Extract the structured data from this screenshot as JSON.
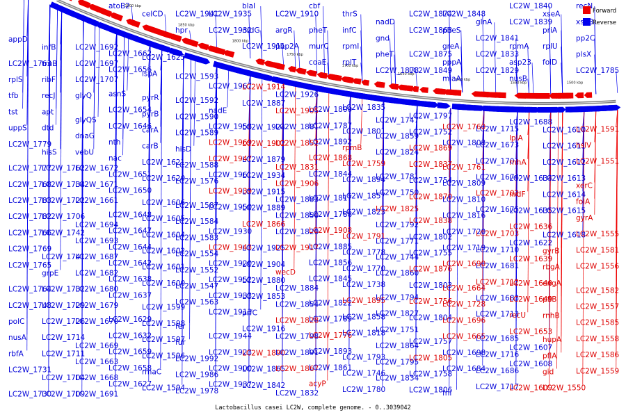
{
  "caption": "Lactobacillus casei LC2W, complete genome. - 0..3039042",
  "legend": [
    {
      "name": "Forward",
      "color": "#ee0000"
    },
    {
      "name": "Reverse",
      "color": "#0000ee"
    }
  ],
  "colors": {
    "forward": "#ee0000",
    "reverse": "#0000ee",
    "axis": "#808080"
  },
  "ticks": [
    "1950 kbp",
    "1900 kbp",
    "1850 kbp",
    "1800 kbp",
    "1750 kbp",
    "1700 kbp",
    "1650 kbp",
    "1600 kbp",
    "1550 kbp",
    "1500 kbp"
  ],
  "labels": [
    {
      "t": "atoB2",
      "s": "r"
    },
    {
      "t": "celCD",
      "s": "r"
    },
    {
      "t": "LC2W_1941",
      "s": "r"
    },
    {
      "t": "hpr",
      "s": "r"
    },
    {
      "t": "LC2W_1935",
      "s": "r"
    },
    {
      "t": "LC2W_1932",
      "s": "r"
    },
    {
      "t": "blaI",
      "s": "r"
    },
    {
      "t": "nrdG",
      "s": "r"
    },
    {
      "t": "LC2W_1911",
      "s": "r"
    },
    {
      "t": "LC2W_1910",
      "s": "r"
    },
    {
      "t": "argR",
      "s": "r"
    },
    {
      "t": "pbp2A",
      "s": "r"
    },
    {
      "t": "cbf",
      "s": "r"
    },
    {
      "t": "pheT",
      "s": "r"
    },
    {
      "t": "murC",
      "s": "r"
    },
    {
      "t": "coaE",
      "s": "r"
    },
    {
      "t": "thrS",
      "s": "r"
    },
    {
      "t": "infC",
      "s": "r"
    },
    {
      "t": "rpmI",
      "s": "r"
    },
    {
      "t": "rplT",
      "s": "r"
    },
    {
      "t": "nadD",
      "s": "r"
    },
    {
      "t": "gnd",
      "s": "r"
    },
    {
      "t": "pheT",
      "s": "r"
    },
    {
      "t": "LC2W_1878",
      "s": "r"
    },
    {
      "t": "LC2W_1874",
      "s": "r"
    },
    {
      "t": "LC2W_1863",
      "s": "r"
    },
    {
      "t": "LC2W_1875",
      "s": "r"
    },
    {
      "t": "LC2W_1849",
      "s": "r"
    },
    {
      "t": "LC2W_1848",
      "s": "r"
    },
    {
      "t": "pheS",
      "s": "r"
    },
    {
      "t": "greA",
      "s": "r"
    },
    {
      "t": "pppA",
      "s": "r"
    },
    {
      "t": "miaA",
      "s": "r"
    },
    {
      "t": "glnA",
      "s": "r"
    },
    {
      "t": "LC2W_1841",
      "s": "r"
    },
    {
      "t": "LC2W_1833",
      "s": "r"
    },
    {
      "t": "LC2W_1829",
      "s": "r"
    },
    {
      "t": "LC2W_1840",
      "s": "r"
    },
    {
      "t": "LC2W_1839",
      "s": "r"
    },
    {
      "t": "rpmA",
      "s": "r"
    },
    {
      "t": "asp23",
      "s": "r"
    },
    {
      "t": "nusB",
      "s": "r"
    },
    {
      "t": "xseA",
      "s": "r"
    },
    {
      "t": "priA",
      "s": "r"
    },
    {
      "t": "rplU",
      "s": "r"
    },
    {
      "t": "folD",
      "s": "r"
    },
    {
      "t": "recN",
      "s": "r"
    },
    {
      "t": "xseB",
      "s": "r"
    },
    {
      "t": "pp2C",
      "s": "r"
    },
    {
      "t": "plsX",
      "s": "r"
    },
    {
      "t": "LC2W_1785",
      "s": "r"
    },
    {
      "t": "appD",
      "s": "r"
    },
    {
      "t": "LC2W_1763",
      "s": "r"
    },
    {
      "t": "rplS",
      "s": "r"
    },
    {
      "t": "tfb",
      "s": "r"
    },
    {
      "t": "tst",
      "s": "r"
    },
    {
      "t": "uppS",
      "s": "r"
    },
    {
      "t": "LC2W_1779",
      "s": "r"
    },
    {
      "t": "LC2W_1777",
      "s": "r"
    },
    {
      "t": "LC2W_1768",
      "s": "r"
    },
    {
      "t": "LC2W_1783",
      "s": "r"
    },
    {
      "t": "LC2W_1782",
      "s": "r"
    },
    {
      "t": "LC2W_1766",
      "s": "r"
    },
    {
      "t": "LC2W_1769",
      "s": "r"
    },
    {
      "t": "LC2W_1765",
      "s": "r"
    },
    {
      "t": "LC2W_1764",
      "s": "r"
    },
    {
      "t": "LC2W_1748",
      "s": "r"
    },
    {
      "t": "polC",
      "s": "r"
    },
    {
      "t": "nusA",
      "s": "r"
    },
    {
      "t": "rbfA",
      "s": "r"
    },
    {
      "t": "LC2W_1731",
      "s": "r"
    },
    {
      "t": "LC2W_1730",
      "s": "r"
    },
    {
      "t": "infB",
      "s": "r"
    },
    {
      "t": "truB",
      "s": "r"
    },
    {
      "t": "ribF",
      "s": "r"
    },
    {
      "t": "recJ",
      "s": "r"
    },
    {
      "t": "apt",
      "s": "r"
    },
    {
      "t": "dtd",
      "s": "r"
    },
    {
      "t": "hisS",
      "s": "r"
    },
    {
      "t": "LC2W_1762",
      "s": "r"
    },
    {
      "t": "LC2W_1734",
      "s": "r"
    },
    {
      "t": "LC2W_1722",
      "s": "r"
    },
    {
      "t": "LC2W_1706",
      "s": "r"
    },
    {
      "t": "LC2W_1742",
      "s": "r"
    },
    {
      "t": "LC2W_1741",
      "s": "r"
    },
    {
      "t": "grpE",
      "s": "r"
    },
    {
      "t": "LC2W_1732",
      "s": "r"
    },
    {
      "t": "LC2W_1729",
      "s": "r"
    },
    {
      "t": "LC2W_1726",
      "s": "r"
    },
    {
      "t": "LC2W_1714",
      "s": "r"
    },
    {
      "t": "LC2W_1711",
      "s": "r"
    },
    {
      "t": "LC2W_1704",
      "s": "r"
    },
    {
      "t": "LC2W_1709",
      "s": "r"
    },
    {
      "t": "LC2W_1692",
      "s": "r"
    },
    {
      "t": "LC2W_1697",
      "s": "r"
    },
    {
      "t": "LC2W_1707",
      "s": "r"
    },
    {
      "t": "glyQ",
      "s": "r"
    },
    {
      "t": "glyQS",
      "s": "r"
    },
    {
      "t": "dnaG",
      "s": "r"
    },
    {
      "t": "vebU",
      "s": "r"
    },
    {
      "t": "LC2W_1672",
      "s": "r"
    },
    {
      "t": "LC2W_1671",
      "s": "r"
    },
    {
      "t": "LC2W_1661",
      "s": "r"
    },
    {
      "t": "LC2W_1694",
      "s": "r"
    },
    {
      "t": "LC2W_1693",
      "s": "r"
    },
    {
      "t": "LC2W_1687",
      "s": "r"
    },
    {
      "t": "LC2W_1682",
      "s": "r"
    },
    {
      "t": "LC2W_1680",
      "s": "r"
    },
    {
      "t": "LC2W_1679",
      "s": "r"
    },
    {
      "t": "LC2W_1670",
      "s": "r"
    },
    {
      "t": "LC2W_1669",
      "s": "r"
    },
    {
      "t": "LC2W_1663",
      "s": "r"
    },
    {
      "t": "LC2W_1668",
      "s": "r"
    },
    {
      "t": "LC2W_1691",
      "s": "r"
    },
    {
      "t": "LC2W_1662",
      "s": "r"
    },
    {
      "t": "LC2W_1656",
      "s": "r"
    },
    {
      "t": "asnS",
      "s": "r"
    },
    {
      "t": "LC2W_1654",
      "s": "r"
    },
    {
      "t": "LC2W_1646",
      "s": "r"
    },
    {
      "t": "nth",
      "s": "r"
    },
    {
      "t": "nac",
      "s": "r"
    },
    {
      "t": "LC2W_1651",
      "s": "r"
    },
    {
      "t": "LC2W_1650",
      "s": "r"
    },
    {
      "t": "LC2W_1648",
      "s": "r"
    },
    {
      "t": "LC2W_1647",
      "s": "r"
    },
    {
      "t": "LC2W_1644",
      "s": "r"
    },
    {
      "t": "LC2W_1642",
      "s": "r"
    },
    {
      "t": "LC2W_1638",
      "s": "r"
    },
    {
      "t": "LC2W_1637",
      "s": "r"
    },
    {
      "t": "LC2W_1629",
      "s": "r"
    },
    {
      "t": "LC2W_1632",
      "s": "r"
    },
    {
      "t": "LC2W_1659",
      "s": "r"
    },
    {
      "t": "LC2W_1658",
      "s": "r"
    },
    {
      "t": "LC2W_1627",
      "s": "r"
    },
    {
      "t": "LC2W_1625",
      "s": "r"
    },
    {
      "t": "lspA",
      "s": "r"
    },
    {
      "t": "pyrR",
      "s": "r"
    },
    {
      "t": "pyrB",
      "s": "r"
    },
    {
      "t": "carA",
      "s": "r"
    },
    {
      "t": "carB",
      "s": "r"
    },
    {
      "t": "LC2W_1621",
      "s": "r"
    },
    {
      "t": "LC2W_1620",
      "s": "r"
    },
    {
      "t": "LC2W_1606",
      "s": "r"
    },
    {
      "t": "LC2W_1605",
      "s": "r"
    },
    {
      "t": "LC2W_1604",
      "s": "r"
    },
    {
      "t": "LC2W_1602",
      "s": "r"
    },
    {
      "t": "LC2W_1601",
      "s": "r"
    },
    {
      "t": "LC2W_1600",
      "s": "r"
    },
    {
      "t": "LC2W_1599",
      "s": "r"
    },
    {
      "t": "LC2W_1598",
      "s": "r"
    },
    {
      "t": "LC2W_1597",
      "s": "r"
    },
    {
      "t": "LC2W_1596",
      "s": "r"
    },
    {
      "t": "rmaC",
      "s": "r"
    },
    {
      "t": "LC2W_1594",
      "s": "r"
    },
    {
      "t": "LC2W_1593",
      "s": "r"
    },
    {
      "t": "LC2W_1592",
      "s": "r"
    },
    {
      "t": "LC2W_1590",
      "s": "r"
    },
    {
      "t": "LC2W_1589",
      "s": "r"
    },
    {
      "t": "hisD",
      "s": "r"
    },
    {
      "t": "LC2W_1588",
      "s": "r"
    },
    {
      "t": "LC2W_1576",
      "s": "r"
    },
    {
      "t": "LC2W_1587",
      "s": "r"
    },
    {
      "t": "LC2W_1584",
      "s": "r"
    },
    {
      "t": "LC2W_1583",
      "s": "r"
    },
    {
      "t": "LC2W_1554",
      "s": "r"
    },
    {
      "t": "LC2W_1552",
      "s": "r"
    },
    {
      "t": "LC2W_1547",
      "s": "r"
    },
    {
      "t": "LC2W_1563",
      "s": "r"
    },
    {
      "t": "fer",
      "s": "r"
    },
    {
      "t": "fur",
      "s": "r"
    },
    {
      "t": "LC2W_1992",
      "s": "r"
    },
    {
      "t": "LC2W_1986",
      "s": "r"
    },
    {
      "t": "LC2W_1978",
      "s": "r"
    },
    {
      "t": "LC2W_1967",
      "s": "r"
    },
    {
      "t": "nadE",
      "s": "r"
    },
    {
      "t": "LC2W_1958",
      "s": "r"
    },
    {
      "t": "LC2W_1969",
      "s": "f"
    },
    {
      "t": "LC2W_1947",
      "s": "f"
    },
    {
      "t": "LC2W_1961",
      "s": "r"
    },
    {
      "t": "LC2W_1939",
      "s": "f"
    },
    {
      "t": "LC2W_1950",
      "s": "r"
    },
    {
      "t": "LC2W_1930",
      "s": "r"
    },
    {
      "t": "LC2W_1943",
      "s": "f"
    },
    {
      "t": "LC2W_1920",
      "s": "r"
    },
    {
      "t": "LC2W_1952",
      "s": "r"
    },
    {
      "t": "LC2W_1933",
      "s": "r"
    },
    {
      "t": "LC2W_1913",
      "s": "r"
    },
    {
      "t": "LC2W_1944",
      "s": "r"
    },
    {
      "t": "LC2W_1923",
      "s": "r"
    },
    {
      "t": "LC2W_1900",
      "s": "r"
    },
    {
      "t": "LC2W_1937",
      "s": "r"
    },
    {
      "t": "LC2W_1914",
      "s": "f"
    },
    {
      "t": "LC2W_1887",
      "s": "r"
    },
    {
      "t": "LC2W_1924",
      "s": "r"
    },
    {
      "t": "LC2W_1902",
      "s": "f"
    },
    {
      "t": "LC2W_1879",
      "s": "r"
    },
    {
      "t": "LC2W_1934",
      "s": "r"
    },
    {
      "t": "LC2W_1915",
      "s": "r"
    },
    {
      "t": "LC2W_1889",
      "s": "r"
    },
    {
      "t": "LC2W_1866",
      "s": "f"
    },
    {
      "t": "LC2W_1925",
      "s": "r"
    },
    {
      "t": "LC2W_1904",
      "s": "r"
    },
    {
      "t": "LC2W_1880",
      "s": "r"
    },
    {
      "t": "LC2W_1853",
      "s": "r"
    },
    {
      "t": "prfC",
      "s": "r"
    },
    {
      "t": "LC2W_1916",
      "s": "r"
    },
    {
      "t": "LC2W_1890",
      "s": "f"
    },
    {
      "t": "LC2W_1865",
      "s": "r"
    },
    {
      "t": "LC2W_1842",
      "s": "r"
    },
    {
      "t": "LC2W_1926",
      "s": "r"
    },
    {
      "t": "LC2W_1905",
      "s": "f"
    },
    {
      "t": "LC2W_1881",
      "s": "r"
    },
    {
      "t": "LC2W_1852",
      "s": "f"
    },
    {
      "t": "LC2W_1831",
      "s": "f"
    },
    {
      "t": "LC2W_1906",
      "s": "f"
    },
    {
      "t": "LC2W_1883",
      "s": "r"
    },
    {
      "t": "LC2W_1850",
      "s": "r"
    },
    {
      "t": "LC2W_1820",
      "s": "r"
    },
    {
      "t": "LC2W_1917",
      "s": "f"
    },
    {
      "t": "wecD",
      "s": "f"
    },
    {
      "t": "LC2W_1884",
      "s": "r"
    },
    {
      "t": "LC2W_1854",
      "s": "r"
    },
    {
      "t": "LC2W_1828",
      "s": "f"
    },
    {
      "t": "LC2W_1798",
      "s": "r"
    },
    {
      "t": "LC2W_1891",
      "s": "r"
    },
    {
      "t": "LC2W_1867",
      "s": "f"
    },
    {
      "t": "LC2W_1832",
      "s": "r"
    },
    {
      "t": "LC2W_1800",
      "s": "r"
    },
    {
      "t": "LC2W_1787",
      "s": "r"
    },
    {
      "t": "LC2W_1892",
      "s": "r"
    },
    {
      "t": "LC2W_1868",
      "s": "f"
    },
    {
      "t": "LC2W_1844",
      "s": "r"
    },
    {
      "t": "LC2W_1817",
      "s": "r"
    },
    {
      "t": "LC2W_1788",
      "s": "r"
    },
    {
      "t": "LC2W_1908",
      "s": "f"
    },
    {
      "t": "LC2W_1885",
      "s": "r"
    },
    {
      "t": "LC2W_1856",
      "s": "r"
    },
    {
      "t": "LC2W_1845",
      "s": "r"
    },
    {
      "t": "LC2W_1822",
      "s": "r"
    },
    {
      "t": "LC2W_1789",
      "s": "r"
    },
    {
      "t": "LC2W_1776",
      "s": "f"
    },
    {
      "t": "LC2W_1893",
      "s": "r"
    },
    {
      "t": "LC2W_1861",
      "s": "r"
    },
    {
      "t": "acyP",
      "s": "f"
    },
    {
      "t": "LC2W_1835",
      "s": "r"
    },
    {
      "t": "LC2W_1801",
      "s": "r"
    },
    {
      "t": "rpmB",
      "s": "f"
    },
    {
      "t": "LC2W_1759",
      "s": "f"
    },
    {
      "t": "LC2W_1894",
      "s": "r"
    },
    {
      "t": "LC2W_1857",
      "s": "r"
    },
    {
      "t": "LC2W_1823",
      "s": "r"
    },
    {
      "t": "LC2W_1791",
      "s": "f"
    },
    {
      "t": "LC2W_1778",
      "s": "r"
    },
    {
      "t": "LC2W_1770",
      "s": "r"
    },
    {
      "t": "LC2W_1738",
      "s": "r"
    },
    {
      "t": "LC2W_1895",
      "s": "f"
    },
    {
      "t": "LC2W_1858",
      "s": "r"
    },
    {
      "t": "LC2W_1818",
      "s": "r"
    },
    {
      "t": "LC2W_1793",
      "s": "r"
    },
    {
      "t": "LC2W_1746",
      "s": "r"
    },
    {
      "t": "LC2W_1780",
      "s": "r"
    },
    {
      "t": "LC2W_1747",
      "s": "r"
    },
    {
      "t": "LC2W_1859",
      "s": "r"
    },
    {
      "t": "LC2W_1824",
      "s": "r"
    },
    {
      "t": "LC2W_1781",
      "s": "r"
    },
    {
      "t": "LC2W_1750",
      "s": "r"
    },
    {
      "t": "LC2W_1825",
      "s": "f"
    },
    {
      "t": "LC2W_1792",
      "s": "r"
    },
    {
      "t": "LC2W_1771",
      "s": "r"
    },
    {
      "t": "LC2W_1744",
      "s": "r"
    },
    {
      "t": "LC2W_1860",
      "s": "r"
    },
    {
      "t": "LC2W_1794",
      "s": "r"
    },
    {
      "t": "LC2W_1827",
      "s": "r"
    },
    {
      "t": "LC2W_1751",
      "s": "r"
    },
    {
      "t": "LC2W_1864",
      "s": "r"
    },
    {
      "t": "LC2W_1795",
      "s": "r"
    },
    {
      "t": "LC2W_1834",
      "s": "r"
    },
    {
      "t": "LC2W_1797",
      "s": "r"
    },
    {
      "t": "LC2W_1752",
      "s": "r"
    },
    {
      "t": "LC2W_1869",
      "s": "f"
    },
    {
      "t": "LC2W_1837",
      "s": "f"
    },
    {
      "t": "LC2W_1754",
      "s": "r"
    },
    {
      "t": "LC2W_1870",
      "s": "f"
    },
    {
      "t": "LC2W_1838",
      "s": "f"
    },
    {
      "t": "LC2W_1802",
      "s": "r"
    },
    {
      "t": "LC2W_1755",
      "s": "r"
    },
    {
      "t": "LC2W_1876",
      "s": "f"
    },
    {
      "t": "LC2W_1803",
      "s": "r"
    },
    {
      "t": "LC2W_1756",
      "s": "f"
    },
    {
      "t": "LC2W_1804",
      "s": "r"
    },
    {
      "t": "LC2W_1757",
      "s": "r"
    },
    {
      "t": "LC2W_1805",
      "s": "f"
    },
    {
      "t": "LC2W_1758",
      "s": "r"
    },
    {
      "t": "LC2W_1806",
      "s": "r"
    },
    {
      "t": "LC2W_1760",
      "s": "f"
    },
    {
      "t": "LC2W_1808",
      "s": "r"
    },
    {
      "t": "LC2W_1761",
      "s": "f"
    },
    {
      "t": "LC2W_1809",
      "s": "r"
    },
    {
      "t": "LC2W_1810",
      "s": "r"
    },
    {
      "t": "LC2W_1816",
      "s": "r"
    },
    {
      "t": "LC2W_1720",
      "s": "r"
    },
    {
      "t": "LC2W_1719",
      "s": "r"
    },
    {
      "t": "LC2W_1690",
      "s": "f"
    },
    {
      "t": "LC2W_1664",
      "s": "f"
    },
    {
      "t": "LC2W_1728",
      "s": "f"
    },
    {
      "t": "LC2W_1696",
      "s": "f"
    },
    {
      "t": "LC2W_1665",
      "s": "f"
    },
    {
      "t": "LC2W_1698",
      "s": "r"
    },
    {
      "t": "LC2W_1684",
      "s": "r"
    },
    {
      "t": "fni",
      "s": "r"
    },
    {
      "t": "LC2W_1715",
      "s": "r"
    },
    {
      "t": "LC2W_1673",
      "s": "r"
    },
    {
      "t": "LC2W_1701",
      "s": "r"
    },
    {
      "t": "LC2W_1674",
      "s": "r"
    },
    {
      "t": "LC2W_1702",
      "s": "f"
    },
    {
      "t": "LC2W_1675",
      "s": "r"
    },
    {
      "t": "LC2W_1703",
      "s": "f"
    },
    {
      "t": "LC2W_1710",
      "s": "r"
    },
    {
      "t": "LC2W_1681",
      "s": "r"
    },
    {
      "t": "LC2W_1712",
      "s": "f"
    },
    {
      "t": "LC2W_1683",
      "s": "r"
    },
    {
      "t": "LC2W_1713",
      "s": "r"
    },
    {
      "t": "LC2W_1685",
      "s": "r"
    },
    {
      "t": "LC2W_1716",
      "s": "r"
    },
    {
      "t": "LC2W_1686",
      "s": "r"
    },
    {
      "t": "LC2W_1717",
      "s": "r"
    },
    {
      "t": "LC2W_1688",
      "s": "r"
    },
    {
      "t": "lplA",
      "s": "f"
    },
    {
      "t": "rnhA",
      "s": "f"
    },
    {
      "t": "LC2W_1634",
      "s": "r"
    },
    {
      "t": "nrdF",
      "s": "f"
    },
    {
      "t": "LC2W_1635",
      "s": "r"
    },
    {
      "t": "LC2W_1636",
      "s": "f"
    },
    {
      "t": "LC2W_1622",
      "s": "r"
    },
    {
      "t": "LC2W_1639",
      "s": "f"
    },
    {
      "t": "LC2W_1640",
      "s": "f"
    },
    {
      "t": "LC2W_1649",
      "s": "f"
    },
    {
      "t": "recU",
      "s": "f"
    },
    {
      "t": "LC2W_1653",
      "s": "f"
    },
    {
      "t": "LC2W_1607",
      "s": "r"
    },
    {
      "t": "LC2W_1608",
      "s": "r"
    },
    {
      "t": "LC2W_1609",
      "s": "f"
    },
    {
      "t": "LC2W_1610",
      "s": "r"
    },
    {
      "t": "LC2W_1611",
      "s": "r"
    },
    {
      "t": "LC2W_1612",
      "s": "r"
    },
    {
      "t": "LC2W_1613",
      "s": "r"
    },
    {
      "t": "LC2W_1614",
      "s": "r"
    },
    {
      "t": "LC2W_1615",
      "s": "r"
    },
    {
      "t": "LC2W_1618",
      "s": "r"
    },
    {
      "t": "gyrB",
      "s": "f"
    },
    {
      "t": "rbgA",
      "s": "f"
    },
    {
      "t": "engA",
      "s": "f"
    },
    {
      "t": "pflB",
      "s": "f"
    },
    {
      "t": "rnhB",
      "s": "f"
    },
    {
      "t": "hupA",
      "s": "f"
    },
    {
      "t": "pflA",
      "s": "f"
    },
    {
      "t": "gid",
      "s": "f"
    },
    {
      "t": "LC2W_1550",
      "s": "f"
    },
    {
      "t": "LC2W_1591",
      "s": "f"
    },
    {
      "t": "hslV",
      "s": "f"
    },
    {
      "t": "LC2W_1551",
      "s": "f"
    },
    {
      "t": "xerC",
      "s": "f"
    },
    {
      "t": "folA",
      "s": "f"
    },
    {
      "t": "gyrA",
      "s": "f"
    },
    {
      "t": "LC2W_1555",
      "s": "f"
    },
    {
      "t": "LC2W_1581",
      "s": "f"
    },
    {
      "t": "LC2W_1556",
      "s": "f"
    },
    {
      "t": "LC2W_1582",
      "s": "f"
    },
    {
      "t": "LC2W_1557",
      "s": "f"
    },
    {
      "t": "LC2W_1585",
      "s": "f"
    },
    {
      "t": "LC2W_1558",
      "s": "f"
    },
    {
      "t": "LC2W_1586",
      "s": "f"
    },
    {
      "t": "LC2W_1559",
      "s": "f"
    }
  ]
}
